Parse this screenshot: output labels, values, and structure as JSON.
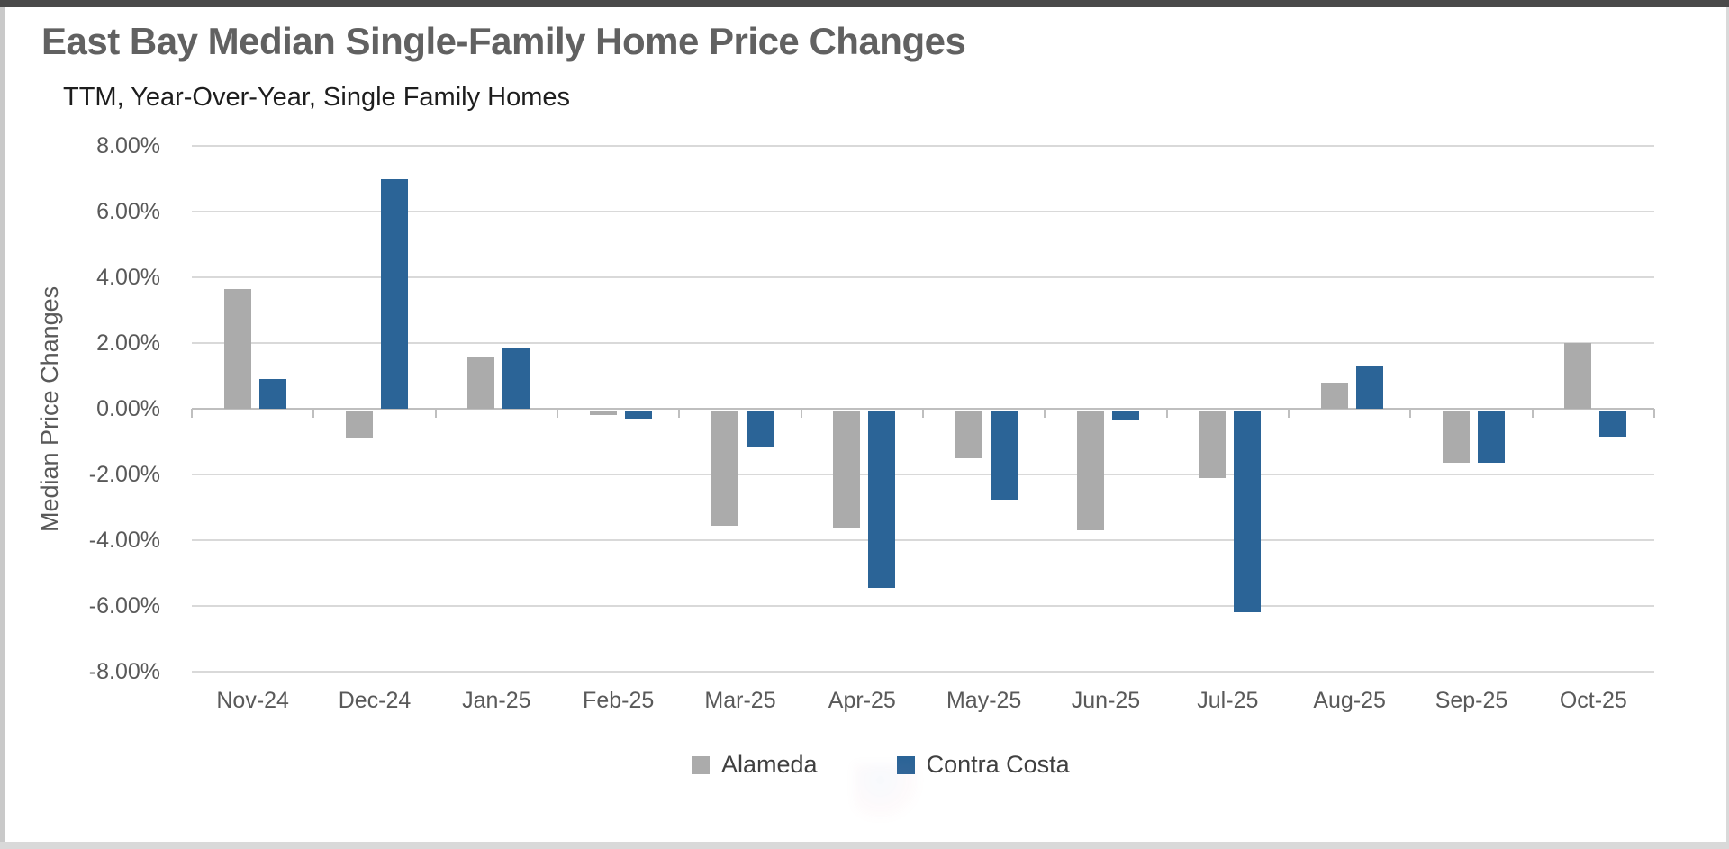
{
  "page": {
    "title": "East Bay Median Single-Family Home Price Changes",
    "subtitle": "TTM, Year-Over-Year, Single Family Homes"
  },
  "colors": {
    "alameda_series": "#ABABAB",
    "contra_costa_series": "#2B6497",
    "gridline": "#D9D9D9",
    "axis_line": "#BFBFBF",
    "title_text": "#616161",
    "tick_label_text": "#595959",
    "legend_text": "#404040",
    "top_edge_bar": "#4A4A4A",
    "bottom_edge_bar": "#D9D9D9",
    "side_border": "#C9C9C9"
  },
  "chart_data": {
    "type": "bar",
    "title": "East Bay Median Single-Family Home Price Changes",
    "subtitle": "TTM, Year-Over-Year, Single Family Homes",
    "xlabel": "",
    "ylabel": "Median Price Changes",
    "value_unit": "percent",
    "ylim": [
      -8,
      8
    ],
    "ytick_step": 2,
    "ytick_values": [
      8,
      6,
      4,
      2,
      0,
      -2,
      -4,
      -6,
      -8
    ],
    "ytick_labels": [
      "8.00%",
      "6.00%",
      "4.00%",
      "2.00%",
      "0.00%",
      "-2.00%",
      "-4.00%",
      "-6.00%",
      "-8.00%"
    ],
    "grid": true,
    "legend_position": "bottom",
    "categories": [
      "Nov-24",
      "Dec-24",
      "Jan-25",
      "Feb-25",
      "Mar-25",
      "Apr-25",
      "May-25",
      "Jun-25",
      "Jul-25",
      "Aug-25",
      "Sep-25",
      "Oct-25"
    ],
    "series": [
      {
        "name": "Alameda",
        "color": "#ABABAB",
        "values": [
          3.65,
          -0.85,
          1.6,
          -0.15,
          -3.5,
          -3.6,
          -1.45,
          -3.65,
          -2.05,
          0.8,
          -1.6,
          2.0
        ]
      },
      {
        "name": "Contra Costa",
        "color": "#2B6497",
        "values": [
          0.9,
          7.0,
          1.85,
          -0.25,
          -1.1,
          -5.4,
          -2.7,
          -0.3,
          -6.15,
          1.3,
          -1.6,
          -0.8
        ]
      }
    ]
  }
}
